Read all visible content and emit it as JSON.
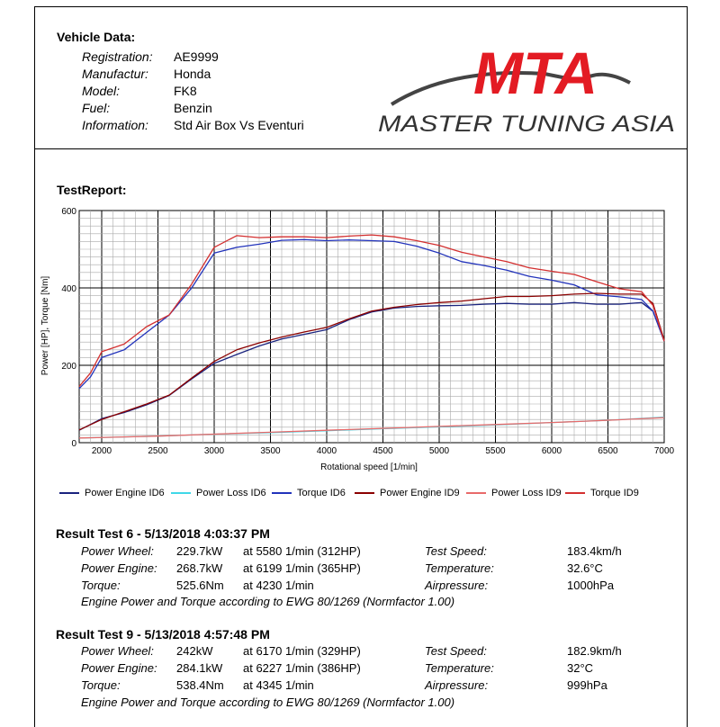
{
  "vehicle": {
    "title": "Vehicle Data:",
    "rows": [
      {
        "label": "Registration:",
        "value": "AE9999"
      },
      {
        "label": "Manufactur:",
        "value": "Honda"
      },
      {
        "label": "Model:",
        "value": "FK8"
      },
      {
        "label": "Fuel:",
        "value": "Benzin"
      },
      {
        "label": "Information:",
        "value": "Std Air Box Vs Eventuri"
      }
    ]
  },
  "logo": {
    "mark": "MTA",
    "text": "MASTER TUNING ASIA",
    "accent_color": "#e31b23"
  },
  "report_title": "TestReport:",
  "chart_data": {
    "type": "line",
    "xlabel": "Rotational  speed [1/min]",
    "ylabel": "Power [HP], Torque [Nm]",
    "xlim": [
      1800,
      7000
    ],
    "ylim": [
      0,
      600
    ],
    "x_ticks": [
      "2000",
      "2500",
      "3000",
      "3500",
      "4000",
      "4500",
      "5000",
      "5500",
      "6000",
      "6500",
      "7000"
    ],
    "y_ticks": [
      "0",
      "200",
      "400",
      "600"
    ],
    "series": [
      {
        "name": "Power Engine ID6",
        "color": "#1a237e",
        "x": [
          1800,
          2000,
          2200,
          2400,
          2600,
          2800,
          3000,
          3200,
          3400,
          3600,
          3800,
          4000,
          4200,
          4400,
          4600,
          4800,
          5000,
          5200,
          5400,
          5600,
          5800,
          6000,
          6200,
          6400,
          6600,
          6800,
          6900,
          7000
        ],
        "y": [
          32,
          62,
          78,
          98,
          122,
          165,
          205,
          228,
          250,
          268,
          280,
          292,
          318,
          338,
          348,
          352,
          354,
          355,
          358,
          360,
          358,
          358,
          362,
          358,
          358,
          362,
          340,
          262
        ]
      },
      {
        "name": "Power Loss ID6",
        "color": "#40d8e8",
        "x": [
          1800,
          2500,
          3000,
          3500,
          4000,
          4500,
          5000,
          5500,
          6000,
          6500,
          7000
        ],
        "y": [
          12,
          17,
          22,
          26,
          31,
          36,
          41,
          46,
          52,
          58,
          66
        ]
      },
      {
        "name": "Torque ID6",
        "color": "#2233bb",
        "x": [
          1800,
          1900,
          2000,
          2200,
          2400,
          2600,
          2800,
          3000,
          3200,
          3400,
          3600,
          3800,
          4000,
          4200,
          4400,
          4600,
          4800,
          5000,
          5200,
          5400,
          5600,
          5800,
          6000,
          6200,
          6400,
          6600,
          6800,
          6900,
          7000
        ],
        "y": [
          140,
          170,
          220,
          240,
          285,
          330,
          400,
          490,
          505,
          513,
          523,
          525,
          522,
          524,
          522,
          520,
          508,
          490,
          468,
          458,
          446,
          430,
          420,
          408,
          382,
          377,
          370,
          340,
          263
        ]
      },
      {
        "name": "Power Engine ID9",
        "color": "#8b0000",
        "x": [
          1800,
          2000,
          2200,
          2400,
          2600,
          2800,
          3000,
          3200,
          3400,
          3600,
          3800,
          4000,
          4200,
          4400,
          4600,
          4800,
          5000,
          5200,
          5400,
          5600,
          5800,
          6000,
          6200,
          6400,
          6600,
          6800,
          6900,
          7000
        ],
        "y": [
          33,
          60,
          80,
          100,
          123,
          167,
          210,
          240,
          258,
          273,
          286,
          298,
          320,
          340,
          350,
          357,
          362,
          366,
          372,
          378,
          378,
          380,
          384,
          386,
          384,
          384,
          360,
          265
        ]
      },
      {
        "name": "Power Loss ID9",
        "color": "#e86a6a",
        "x": [
          1800,
          2500,
          3000,
          3500,
          4000,
          4500,
          5000,
          5500,
          6000,
          6500,
          7000
        ],
        "y": [
          12,
          17,
          22,
          27,
          32,
          37,
          42,
          47,
          52,
          58,
          65
        ]
      },
      {
        "name": "Torque ID9",
        "color": "#d32f2f",
        "x": [
          1800,
          1900,
          2000,
          2200,
          2400,
          2600,
          2800,
          3000,
          3200,
          3400,
          3600,
          3800,
          4000,
          4200,
          4400,
          4600,
          4800,
          5000,
          5200,
          5400,
          5600,
          5800,
          6000,
          6200,
          6400,
          6600,
          6800,
          6900,
          7000
        ],
        "y": [
          145,
          180,
          235,
          255,
          300,
          330,
          410,
          505,
          535,
          530,
          532,
          532,
          530,
          534,
          537,
          532,
          522,
          510,
          492,
          480,
          468,
          452,
          443,
          435,
          416,
          398,
          390,
          355,
          262
        ]
      }
    ]
  },
  "legend": [
    "Power Engine ID6",
    "Power Loss ID6",
    "Torque ID6",
    "Power Engine ID9",
    "Power Loss ID9",
    "Torque ID9"
  ],
  "results": [
    {
      "title": "Result Test 6 - 5/13/2018 4:03:37 PM",
      "rows": [
        {
          "label": "Power Wheel:",
          "value": "229.7kW",
          "detail": "at 5580 1/min (312HP)",
          "param": "Test Speed:",
          "param_value": "183.4km/h"
        },
        {
          "label": "Power Engine:",
          "value": "268.7kW",
          "detail": "at 6199 1/min (365HP)",
          "param": "Temperature:",
          "param_value": "32.6°C"
        },
        {
          "label": "Torque:",
          "value": "525.6Nm",
          "detail": "at 4230 1/min",
          "param": "Airpressure:",
          "param_value": "1000hPa"
        }
      ],
      "note": "Engine Power and Torque according to EWG 80/1269 (Normfactor 1.00)"
    },
    {
      "title": "Result Test 9 - 5/13/2018 4:57:48 PM",
      "rows": [
        {
          "label": "Power Wheel:",
          "value": "242kW",
          "detail": "at 6170 1/min (329HP)",
          "param": "Test Speed:",
          "param_value": "182.9km/h"
        },
        {
          "label": "Power Engine:",
          "value": "284.1kW",
          "detail": "at 6227 1/min (386HP)",
          "param": "Temperature:",
          "param_value": "32°C"
        },
        {
          "label": "Torque:",
          "value": "538.4Nm",
          "detail": "at 4345 1/min",
          "param": "Airpressure:",
          "param_value": "999hPa"
        }
      ],
      "note": "Engine Power and Torque according to EWG 80/1269 (Normfactor 1.00)"
    }
  ]
}
